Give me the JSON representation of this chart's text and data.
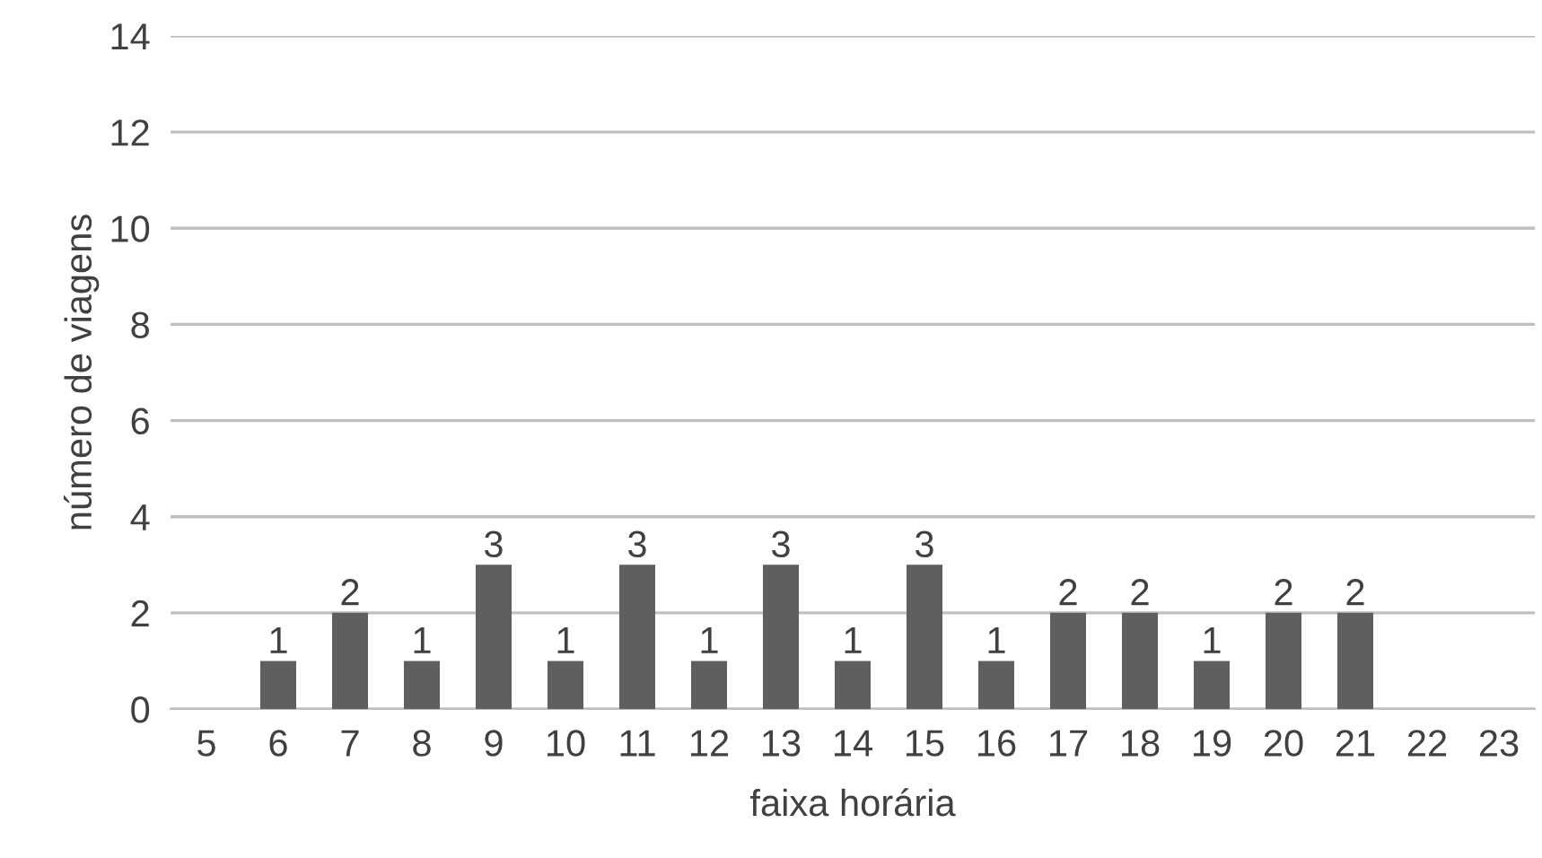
{
  "chart_data": {
    "type": "bar",
    "xlabel": "faixa horária",
    "ylabel": "número de viagens",
    "categories": [
      "5",
      "6",
      "7",
      "8",
      "9",
      "10",
      "11",
      "12",
      "13",
      "14",
      "15",
      "16",
      "17",
      "18",
      "19",
      "20",
      "21",
      "22",
      "23"
    ],
    "values": [
      0,
      1,
      2,
      1,
      3,
      1,
      3,
      1,
      3,
      1,
      3,
      1,
      2,
      2,
      1,
      2,
      2,
      0,
      0
    ],
    "value_labels": [
      null,
      "1",
      "2",
      "1",
      "3",
      "1",
      "3",
      "1",
      "3",
      "1",
      "3",
      "1",
      "2",
      "2",
      "1",
      "2",
      "2",
      null,
      null
    ],
    "color": "#5f5f5f",
    "ylim": [
      0,
      14
    ],
    "yticks": [
      0,
      2,
      4,
      6,
      8,
      10,
      12,
      14
    ],
    "grid": "y",
    "legend": false
  }
}
